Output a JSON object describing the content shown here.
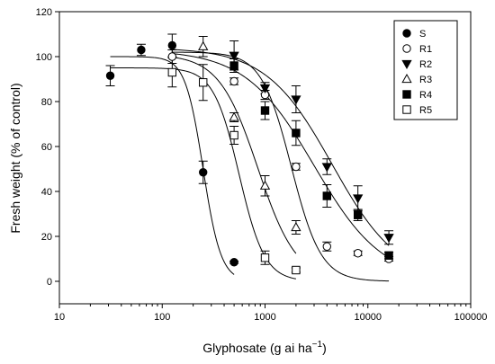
{
  "chart_data": {
    "type": "scatter",
    "title": "",
    "xlabel": "Glyphosate (g ai ha",
    "xlabel_sup": "−1",
    "xlabel_close": ")",
    "ylabel": "Fresh weight (% of control)",
    "xscale": "log",
    "xlim": [
      10,
      100000
    ],
    "ylim": [
      -10,
      120
    ],
    "x_ticks": [
      10,
      100,
      1000,
      10000,
      100000
    ],
    "x_tick_labels": [
      "10",
      "100",
      "1000",
      "10000",
      "100000"
    ],
    "y_ticks": [
      0,
      20,
      40,
      60,
      80,
      100,
      120
    ],
    "y_tick_labels": [
      "0",
      "20",
      "40",
      "60",
      "80",
      "100",
      "120"
    ],
    "grid": false,
    "legend_position": "top-right",
    "series": [
      {
        "name": "S",
        "marker": "circle-filled",
        "x": [
          31.25,
          62.5,
          125,
          250,
          500
        ],
        "y": [
          91.5,
          103,
          105,
          48.5,
          8.5
        ],
        "err": [
          4.5,
          2.5,
          5,
          5,
          0.5
        ],
        "fit": {
          "top": 100,
          "ec50": 250,
          "slope": 5,
          "x_range": [
            31.25,
            500
          ]
        }
      },
      {
        "name": "R1",
        "marker": "circle-open",
        "x": [
          125,
          500,
          1000,
          2000,
          4000,
          8000,
          16000
        ],
        "y": [
          100,
          89,
          83,
          51,
          15.5,
          12.5,
          10
        ],
        "err": [
          3,
          1.5,
          2,
          1.5,
          2,
          1,
          1
        ],
        "fit": {
          "top": 102,
          "ec50": 1800,
          "slope": 3,
          "x_range": [
            125,
            16000
          ]
        }
      },
      {
        "name": "R2",
        "marker": "triangle-down-filled",
        "x": [
          500,
          1000,
          2000,
          4000,
          8000,
          16000
        ],
        "y": [
          100.5,
          86,
          81,
          51,
          37,
          19.5
        ],
        "err": [
          6.5,
          2.5,
          6,
          3.5,
          5.5,
          3
        ],
        "fit": {
          "top": 104,
          "ec50": 4500,
          "slope": 1.35,
          "x_range": [
            125,
            16000
          ]
        }
      },
      {
        "name": "R3",
        "marker": "triangle-up-open",
        "x": [
          250,
          500,
          1000,
          2000
        ],
        "y": [
          104.5,
          73,
          42.5,
          24
        ],
        "err": [
          4.5,
          2,
          4.5,
          3
        ],
        "fit": {
          "top": 101,
          "ec50": 850,
          "slope": 2.3,
          "x_range": [
            125,
            2000
          ]
        }
      },
      {
        "name": "R4",
        "marker": "square-filled",
        "x": [
          500,
          1000,
          2000,
          4000,
          8000,
          16000
        ],
        "y": [
          96,
          76,
          66,
          38,
          29.5,
          11.5
        ],
        "err": [
          3,
          4,
          5.5,
          5,
          2.5,
          1.5
        ],
        "fit": {
          "top": 103,
          "ec50": 3000,
          "slope": 1.3,
          "x_range": [
            125,
            16000
          ]
        }
      },
      {
        "name": "R5",
        "marker": "square-open",
        "x": [
          125,
          250,
          500,
          1000,
          2000
        ],
        "y": [
          93,
          88.5,
          65,
          10.5,
          5
        ],
        "err": [
          6.5,
          8,
          4,
          3,
          1
        ],
        "fit": {
          "top": 95,
          "ec50": 560,
          "slope": 3.5,
          "x_range": [
            31.25,
            2000
          ]
        }
      }
    ]
  }
}
